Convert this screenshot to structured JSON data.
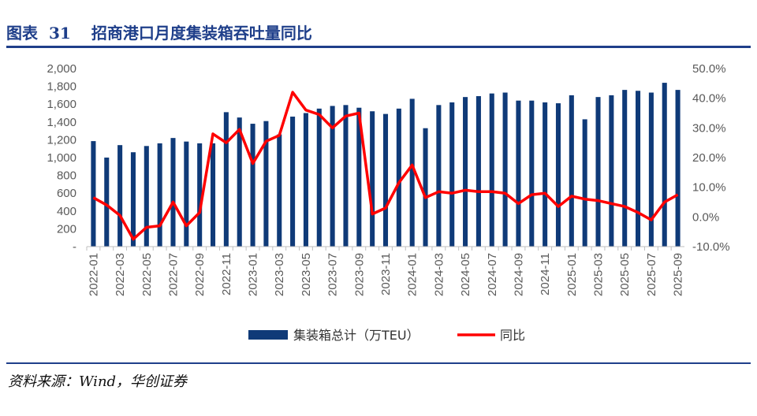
{
  "header": {
    "prefix": "图表",
    "number": "31",
    "text": "招商港口月度集装箱吞吐量同比"
  },
  "source": "资料来源：Wind，华创证券",
  "colors": {
    "bar": "#0f3a78",
    "line": "#ff0000",
    "title": "#1f3f8a"
  },
  "chart_data": {
    "type": "bar",
    "title": "招商港口月度集装箱吞吐量同比",
    "xlabel": "",
    "ylabel": "",
    "grid": false,
    "legend_position": "bottom",
    "categories": [
      "2022-01",
      "2022-02",
      "2022-03",
      "2022-04",
      "2022-05",
      "2022-06",
      "2022-07",
      "2022-08",
      "2022-09",
      "2022-10",
      "2022-11",
      "2022-12",
      "2023-01",
      "2023-02",
      "2023-03",
      "2023-04",
      "2023-05",
      "2023-06",
      "2023-07",
      "2023-08",
      "2023-09",
      "2023-10",
      "2023-11",
      "2023-12",
      "2024-01",
      "2024-02",
      "2024-03",
      "2024-04",
      "2024-05",
      "2024-06",
      "2024-07",
      "2024-08",
      "2024-09",
      "2024-10",
      "2024-11",
      "2024-12",
      "2025-01",
      "2025-02",
      "2025-03",
      "2025-04",
      "2025-05",
      "2025-06",
      "2025-07",
      "2025-08",
      "2025-09"
    ],
    "x_tick_labels": [
      "2022-01",
      "2022-03",
      "2022-05",
      "2022-07",
      "2022-09",
      "2022-11",
      "2023-01",
      "2023-03",
      "2023-05",
      "2023-07",
      "2023-09",
      "2023-11",
      "2024-01",
      "2024-03",
      "2024-05",
      "2024-07",
      "2024-09",
      "2024-11",
      "2025-01",
      "2025-03",
      "2025-05",
      "2025-07",
      "2025-09"
    ],
    "y_left": {
      "range": [
        0,
        2000
      ],
      "ticks": [
        0,
        200,
        400,
        600,
        800,
        1000,
        1200,
        1400,
        1600,
        1800,
        2000
      ],
      "tick_labels": [
        "-",
        "200",
        "400",
        "600",
        "800",
        "1,000",
        "1,200",
        "1,400",
        "1,600",
        "1,800",
        "2,000"
      ]
    },
    "y_right": {
      "range": [
        -10,
        50
      ],
      "ticks": [
        -10,
        0,
        10,
        20,
        30,
        40,
        50
      ],
      "tick_labels": [
        "-10.0%",
        "0.0%",
        "10.0%",
        "20.0%",
        "30.0%",
        "40.0%",
        "50.0%"
      ]
    },
    "series": [
      {
        "name": "集装箱总计（万TEU）",
        "type": "bar",
        "axis": "left",
        "values": [
          1185,
          1000,
          1140,
          1060,
          1130,
          1160,
          1220,
          1180,
          1160,
          1160,
          1510,
          1450,
          1380,
          1410,
          1260,
          1460,
          1500,
          1550,
          1580,
          1590,
          1560,
          1520,
          1490,
          1550,
          1660,
          1330,
          1590,
          1620,
          1680,
          1690,
          1720,
          1730,
          1640,
          1640,
          1620,
          1610,
          1700,
          1430,
          1680,
          1700,
          1760,
          1750,
          1730,
          1840,
          1760
        ]
      },
      {
        "name": "同比",
        "type": "line",
        "axis": "right",
        "unit": "%",
        "values": [
          6.5,
          4.0,
          0.5,
          -7.5,
          -3.5,
          -3.0,
          5.0,
          -3.0,
          1.5,
          28.0,
          25.0,
          29.5,
          18.0,
          25.5,
          27.5,
          42.0,
          36.0,
          34.5,
          30.0,
          34.0,
          35.0,
          1.0,
          3.0,
          11.5,
          17.5,
          6.5,
          8.5,
          8.0,
          9.0,
          8.5,
          8.5,
          8.0,
          4.5,
          7.5,
          8.0,
          3.5,
          7.0,
          6.0,
          5.5,
          4.5,
          3.5,
          1.5,
          -1.0,
          5.0,
          7.5
        ]
      }
    ]
  }
}
